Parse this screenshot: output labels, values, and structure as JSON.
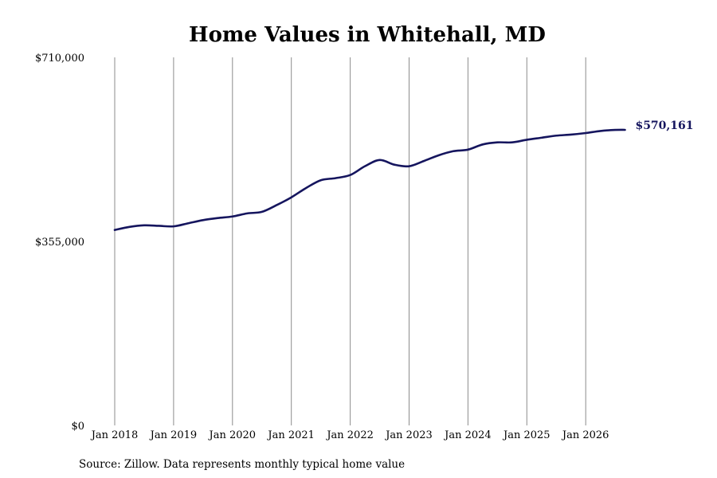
{
  "chart_data": {
    "type": "line",
    "title": "Home Values in Whitehall, MD",
    "xlabel": "",
    "ylabel": "",
    "ylim": [
      0,
      710000
    ],
    "yticks": [
      0,
      355000,
      710000
    ],
    "ytick_labels": [
      "$0",
      "$355,000",
      "$710,000"
    ],
    "xticks": [
      "2018-01",
      "2019-01",
      "2020-01",
      "2021-01",
      "2022-01",
      "2023-01",
      "2024-01",
      "2025-01",
      "2026-01"
    ],
    "xtick_labels": [
      "Jan 2018",
      "Jan 2019",
      "Jan 2020",
      "Jan 2021",
      "Jan 2022",
      "Jan 2023",
      "Jan 2024",
      "Jan 2025",
      "Jan 2026"
    ],
    "grid": "vertical",
    "line_color": "#15155e",
    "series": [
      {
        "x": [
          "2018-01",
          "2018-04",
          "2018-07",
          "2018-10",
          "2019-01",
          "2019-04",
          "2019-07",
          "2019-10",
          "2020-01",
          "2020-04",
          "2020-07",
          "2020-10",
          "2021-01",
          "2021-04",
          "2021-07",
          "2021-10",
          "2022-01",
          "2022-04",
          "2022-07",
          "2022-10",
          "2023-01",
          "2023-04",
          "2023-07",
          "2023-10",
          "2024-01",
          "2024-04",
          "2024-07",
          "2024-10",
          "2025-01",
          "2025-04",
          "2025-07",
          "2025-10",
          "2026-01",
          "2026-04",
          "2026-07",
          "2026-09"
        ],
        "values": [
          377000,
          383000,
          386000,
          385000,
          384000,
          390000,
          396000,
          400000,
          403000,
          409000,
          412000,
          425000,
          440000,
          458000,
          473000,
          477000,
          483000,
          500000,
          512000,
          503000,
          500000,
          510000,
          521000,
          529000,
          532000,
          542000,
          546000,
          546000,
          551000,
          555000,
          559000,
          561000,
          564000,
          568000,
          570000,
          570161
        ]
      }
    ],
    "end_label": "$570,161"
  },
  "source_text": "Source: Zillow. Data represents monthly typical home value"
}
